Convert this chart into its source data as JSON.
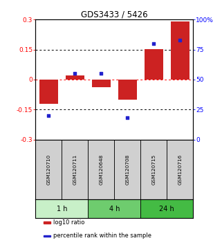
{
  "title": "GDS3433 / 5426",
  "samples": [
    "GSM120710",
    "GSM120711",
    "GSM120648",
    "GSM120708",
    "GSM120715",
    "GSM120716"
  ],
  "log10_ratio": [
    -0.122,
    0.02,
    -0.038,
    -0.1,
    0.152,
    0.29
  ],
  "percentile_rank": [
    20.0,
    55.0,
    55.0,
    18.0,
    80.0,
    83.0
  ],
  "bar_color": "#cc2222",
  "dot_color": "#2222cc",
  "ylim_left": [
    -0.3,
    0.3
  ],
  "ylim_right": [
    0,
    100
  ],
  "yticks_left": [
    -0.3,
    -0.15,
    0,
    0.15,
    0.3
  ],
  "yticks_right": [
    0,
    25,
    50,
    75,
    100
  ],
  "ytick_labels_left": [
    "-0.3",
    "-0.15",
    "0",
    "0.15",
    "0.3"
  ],
  "ytick_labels_right": [
    "0",
    "25",
    "50",
    "75",
    "100%"
  ],
  "time_groups": [
    {
      "label": "1 h",
      "cols": [
        0,
        1
      ],
      "color": "#c8f0c8"
    },
    {
      "label": "4 h",
      "cols": [
        2,
        3
      ],
      "color": "#6ecc6e"
    },
    {
      "label": "24 h",
      "cols": [
        4,
        5
      ],
      "color": "#44bb44"
    }
  ],
  "legend_items": [
    {
      "label": "log10 ratio",
      "color": "#cc2222"
    },
    {
      "label": "percentile rank within the sample",
      "color": "#2222cc"
    }
  ],
  "background_color": "#ffffff"
}
